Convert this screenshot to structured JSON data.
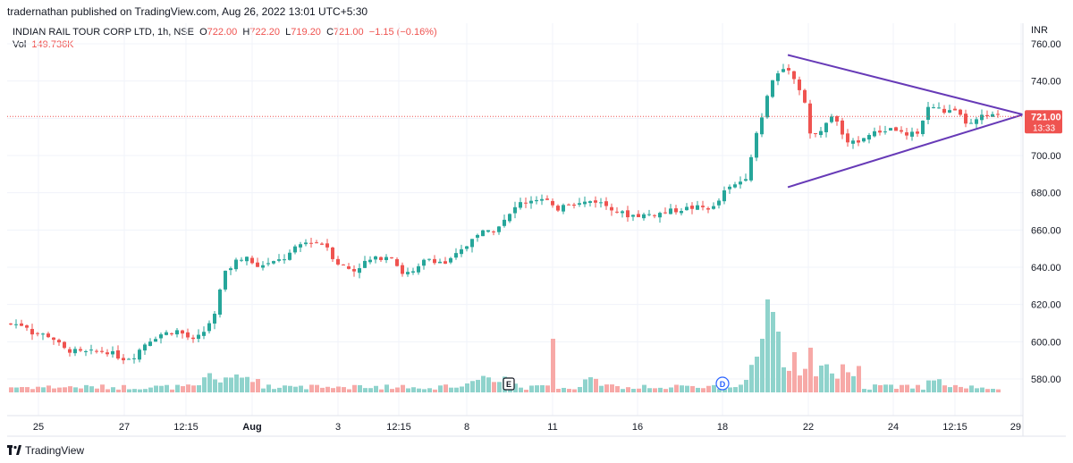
{
  "header": {
    "published_by": "tradernathan published on TradingView.com, Aug 26, 2022 13:01 UTC+5:30"
  },
  "legend": {
    "symbol": "INDIAN RAIL TOUR CORP LTD, 1h, NSE",
    "o_label": "O",
    "o_value": "722.00",
    "h_label": "H",
    "h_value": "722.20",
    "l_label": "L",
    "l_value": "719.20",
    "c_label": "C",
    "c_value": "721.00",
    "change": "−1.15 (−0.16%)",
    "vol_label": "Vol",
    "vol_value": "149.736K"
  },
  "price_scale": {
    "currency": "INR",
    "last_price": "721.00",
    "countdown": "13:33"
  },
  "footer": {
    "brand": "TradingView"
  },
  "colors": {
    "up": "#26a69a",
    "down": "#ef5350",
    "vol_up": "#8fd3cc",
    "vol_down": "#f7a9a7",
    "trendline": "#673ab7",
    "grid": "#f0f3fa"
  },
  "chart_data": {
    "type": "candlestick",
    "y_ticks": [
      580,
      600,
      620,
      640,
      660,
      680,
      700,
      720,
      740,
      760
    ],
    "x_labels": [
      "25",
      "27",
      "12:15",
      "Aug",
      "3",
      "12:15",
      "8",
      "11",
      "16",
      "18",
      "22",
      "24",
      "12:15",
      "29"
    ],
    "ylim": [
      570,
      765
    ],
    "last_close": 721.0,
    "events": [
      "E",
      "D"
    ],
    "trendlines": [
      {
        "from": [
          0.739,
          754
        ],
        "to": [
          1.0,
          722
        ]
      },
      {
        "from": [
          0.739,
          683
        ],
        "to": [
          1.0,
          722
        ]
      }
    ],
    "anchors": [
      [
        0,
        610
      ],
      [
        30,
        609
      ],
      [
        36,
        605
      ],
      [
        58,
        603
      ],
      [
        72,
        596
      ],
      [
        93,
        594
      ],
      [
        120,
        595
      ],
      [
        138,
        591
      ],
      [
        150,
        592
      ],
      [
        165,
        600
      ],
      [
        180,
        604
      ],
      [
        200,
        606
      ],
      [
        218,
        600
      ],
      [
        234,
        608
      ],
      [
        244,
        620
      ],
      [
        250,
        635
      ],
      [
        262,
        642
      ],
      [
        276,
        647
      ],
      [
        283,
        641
      ],
      [
        305,
        642
      ],
      [
        320,
        645
      ],
      [
        336,
        652
      ],
      [
        348,
        654
      ],
      [
        366,
        652
      ],
      [
        376,
        643
      ],
      [
        396,
        638
      ],
      [
        410,
        643
      ],
      [
        425,
        645
      ],
      [
        438,
        647
      ],
      [
        450,
        637
      ],
      [
        465,
        637
      ],
      [
        478,
        645
      ],
      [
        500,
        642
      ],
      [
        520,
        650
      ],
      [
        534,
        658
      ],
      [
        552,
        660
      ],
      [
        568,
        666
      ],
      [
        580,
        674
      ],
      [
        600,
        677
      ],
      [
        612,
        676
      ],
      [
        622,
        670
      ],
      [
        632,
        675
      ],
      [
        648,
        674
      ],
      [
        665,
        676
      ],
      [
        685,
        672
      ],
      [
        700,
        668
      ],
      [
        720,
        668
      ],
      [
        740,
        669
      ],
      [
        760,
        671
      ],
      [
        774,
        672
      ],
      [
        800,
        672
      ],
      [
        812,
        681
      ],
      [
        826,
        685
      ],
      [
        838,
        690
      ],
      [
        846,
        712
      ],
      [
        856,
        725
      ],
      [
        862,
        738
      ],
      [
        872,
        745
      ],
      [
        882,
        748
      ],
      [
        890,
        740
      ],
      [
        900,
        732
      ],
      [
        906,
        712
      ],
      [
        916,
        710
      ],
      [
        930,
        722
      ],
      [
        940,
        715
      ],
      [
        950,
        705
      ],
      [
        966,
        710
      ],
      [
        980,
        712
      ],
      [
        1000,
        715
      ],
      [
        1015,
        710
      ],
      [
        1028,
        713
      ],
      [
        1040,
        727
      ],
      [
        1055,
        724
      ],
      [
        1070,
        723
      ],
      [
        1085,
        716
      ],
      [
        1100,
        721
      ],
      [
        1118,
        721
      ]
    ]
  }
}
